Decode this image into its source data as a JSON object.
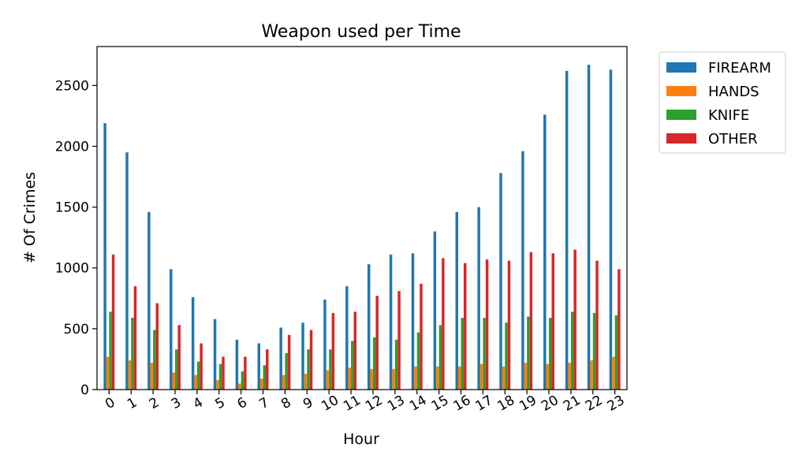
{
  "chart_data": {
    "type": "bar",
    "title": "Weapon used per Time",
    "xlabel": "Hour",
    "ylabel": "# Of Crimes",
    "categories": [
      "0",
      "1",
      "2",
      "3",
      "4",
      "5",
      "6",
      "7",
      "8",
      "9",
      "10",
      "11",
      "12",
      "13",
      "14",
      "15",
      "16",
      "17",
      "18",
      "19",
      "20",
      "21",
      "22",
      "23"
    ],
    "ylim": [
      0,
      2820
    ],
    "yticks": [
      0,
      500,
      1000,
      1500,
      2000,
      2500
    ],
    "grid": false,
    "legend_position": "outside-top-right",
    "series": [
      {
        "name": "FIREARM",
        "color": "#1f77b4",
        "values": [
          2190,
          1950,
          1460,
          990,
          760,
          580,
          410,
          380,
          510,
          550,
          740,
          850,
          1030,
          1110,
          1120,
          1300,
          1460,
          1500,
          1780,
          1960,
          2260,
          2620,
          2670,
          2630
        ]
      },
      {
        "name": "HANDS",
        "color": "#ff7f0e",
        "values": [
          270,
          240,
          220,
          140,
          120,
          80,
          50,
          90,
          120,
          130,
          160,
          180,
          170,
          170,
          190,
          190,
          190,
          210,
          190,
          220,
          210,
          220,
          240,
          270
        ]
      },
      {
        "name": "KNIFE",
        "color": "#2ca02c",
        "values": [
          640,
          590,
          490,
          330,
          230,
          210,
          150,
          200,
          300,
          330,
          330,
          400,
          430,
          410,
          470,
          530,
          590,
          590,
          550,
          600,
          590,
          640,
          630,
          610
        ]
      },
      {
        "name": "OTHER",
        "color": "#d62728",
        "values": [
          1110,
          850,
          710,
          530,
          380,
          270,
          270,
          330,
          450,
          490,
          630,
          640,
          770,
          810,
          870,
          1080,
          1040,
          1070,
          1060,
          1130,
          1120,
          1150,
          1060,
          990
        ]
      }
    ]
  }
}
